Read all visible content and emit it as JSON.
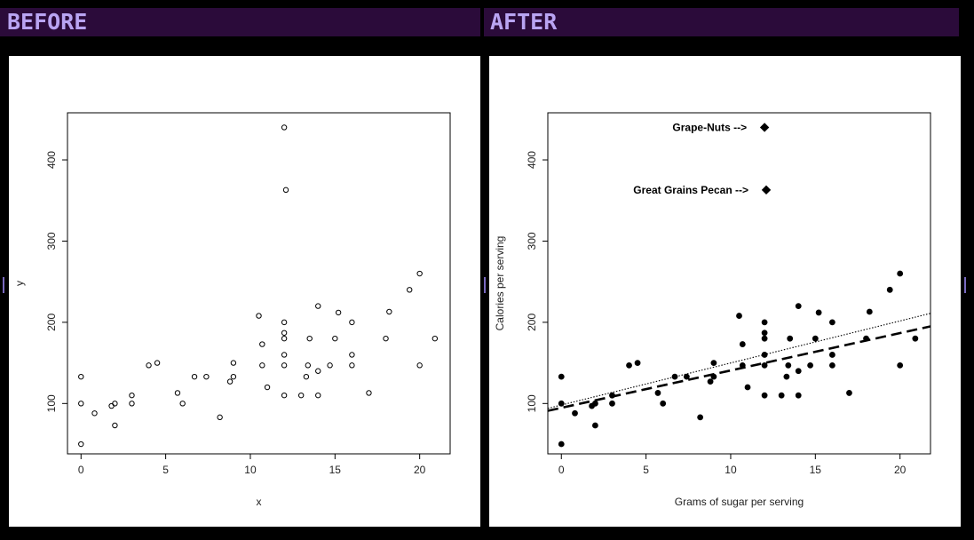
{
  "header": {
    "before_label": "BEFORE",
    "after_label": "AFTER"
  },
  "chart_data": [
    {
      "type": "scatter",
      "panel": "before",
      "title": "",
      "xlabel": "x",
      "ylabel": "y",
      "xlim": [
        -0.8,
        21.8
      ],
      "ylim": [
        38,
        458
      ],
      "x_ticks": [
        0,
        5,
        10,
        15,
        20
      ],
      "y_ticks": [
        100,
        200,
        300,
        400
      ],
      "marker": "open-circle",
      "points": [
        [
          0,
          133
        ],
        [
          0,
          100
        ],
        [
          0,
          50
        ],
        [
          0.8,
          88
        ],
        [
          1.8,
          97
        ],
        [
          2,
          100
        ],
        [
          2,
          73
        ],
        [
          3,
          110
        ],
        [
          3,
          100
        ],
        [
          4,
          147
        ],
        [
          4.5,
          150
        ],
        [
          5.7,
          113
        ],
        [
          6,
          100
        ],
        [
          6.7,
          133
        ],
        [
          7.4,
          133
        ],
        [
          8.2,
          83
        ],
        [
          8.8,
          127
        ],
        [
          9,
          133
        ],
        [
          9,
          150
        ],
        [
          10.5,
          208
        ],
        [
          10.7,
          173
        ],
        [
          10.7,
          147
        ],
        [
          11,
          120
        ],
        [
          12,
          440
        ],
        [
          12.1,
          363
        ],
        [
          12,
          200
        ],
        [
          12,
          187
        ],
        [
          12,
          180
        ],
        [
          12,
          160
        ],
        [
          12,
          147
        ],
        [
          12,
          110
        ],
        [
          13,
          110
        ],
        [
          13.3,
          133
        ],
        [
          13.4,
          147
        ],
        [
          13.5,
          180
        ],
        [
          14,
          220
        ],
        [
          14,
          140
        ],
        [
          14,
          110
        ],
        [
          14.7,
          147
        ],
        [
          15,
          180
        ],
        [
          15.2,
          212
        ],
        [
          16,
          200
        ],
        [
          16,
          160
        ],
        [
          16,
          147
        ],
        [
          17,
          113
        ],
        [
          18,
          180
        ],
        [
          18.2,
          213
        ],
        [
          19.4,
          240
        ],
        [
          20,
          260
        ],
        [
          20,
          147
        ],
        [
          20.9,
          180
        ]
      ]
    },
    {
      "type": "scatter",
      "panel": "after",
      "title": "",
      "xlabel": "Grams of sugar per serving",
      "ylabel": "Calories per serving",
      "xlim": [
        -0.8,
        21.8
      ],
      "ylim": [
        38,
        458
      ],
      "x_ticks": [
        0,
        5,
        10,
        15,
        20
      ],
      "y_ticks": [
        100,
        200,
        300,
        400
      ],
      "marker": "filled-circle",
      "points": [
        [
          0,
          133
        ],
        [
          0,
          100
        ],
        [
          0,
          50
        ],
        [
          0.8,
          88
        ],
        [
          1.8,
          97
        ],
        [
          2,
          100
        ],
        [
          2,
          73
        ],
        [
          3,
          110
        ],
        [
          3,
          100
        ],
        [
          4,
          147
        ],
        [
          4.5,
          150
        ],
        [
          5.7,
          113
        ],
        [
          6,
          100
        ],
        [
          6.7,
          133
        ],
        [
          7.4,
          133
        ],
        [
          8.2,
          83
        ],
        [
          8.8,
          127
        ],
        [
          9,
          133
        ],
        [
          9,
          150
        ],
        [
          10.5,
          208
        ],
        [
          10.7,
          173
        ],
        [
          10.7,
          147
        ],
        [
          11,
          120
        ],
        [
          12,
          200
        ],
        [
          12,
          187
        ],
        [
          12,
          180
        ],
        [
          12,
          160
        ],
        [
          12,
          147
        ],
        [
          12,
          110
        ],
        [
          13,
          110
        ],
        [
          13.3,
          133
        ],
        [
          13.4,
          147
        ],
        [
          13.5,
          180
        ],
        [
          14,
          220
        ],
        [
          14,
          140
        ],
        [
          14,
          110
        ],
        [
          14.7,
          147
        ],
        [
          15,
          180
        ],
        [
          15.2,
          212
        ],
        [
          16,
          200
        ],
        [
          16,
          160
        ],
        [
          16,
          147
        ],
        [
          17,
          113
        ],
        [
          18,
          180
        ],
        [
          18.2,
          213
        ],
        [
          19.4,
          240
        ],
        [
          20,
          260
        ],
        [
          20,
          147
        ],
        [
          20.9,
          180
        ]
      ],
      "highlighted_points": [
        {
          "label": "Grape-Nuts -->",
          "x": 12,
          "y": 440
        },
        {
          "label": "Great Grains Pecan -->",
          "x": 12.1,
          "y": 363
        }
      ],
      "lines": [
        {
          "style": "dashed-thick",
          "x": [
            -0.8,
            21.8
          ],
          "y": [
            91,
            195
          ]
        },
        {
          "style": "dotted",
          "x": [
            -0.8,
            21.8
          ],
          "y": [
            94,
            211
          ]
        }
      ]
    }
  ]
}
